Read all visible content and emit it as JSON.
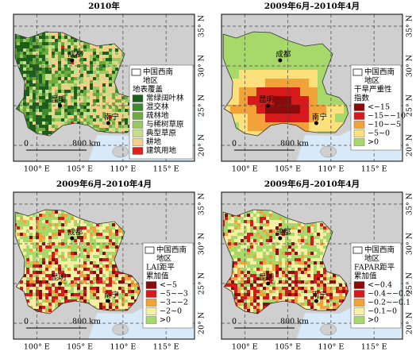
{
  "lat_labels": [
    "35° N",
    "30° N",
    "25° N",
    "20° N"
  ],
  "lon_labels": [
    "100° E",
    "105° E",
    "110° E",
    "115° E"
  ],
  "cities": [
    "成都",
    "昆明",
    "南宁"
  ],
  "region_label": [
    "中国西南",
    "地区"
  ],
  "scale": {
    "start": "0",
    "end": "800 km"
  },
  "panels": [
    {
      "title": "2010年",
      "legend_title": [
        "地表覆盖"
      ],
      "legend": [
        {
          "label": "常绿阔叶林",
          "color": "#1d5e1d"
        },
        {
          "label": "混交林",
          "color": "#3f8a2c"
        },
        {
          "label": "疏林地",
          "color": "#6faa3a"
        },
        {
          "label": "与稀树草原",
          "color": "#98c860"
        },
        {
          "label": "典型草原",
          "color": "#c4df8c"
        },
        {
          "label": "耕地",
          "color": "#f3cf8a"
        },
        {
          "label": "建筑用地",
          "color": "#e0201c"
        }
      ]
    },
    {
      "title": "2009年6月–2010年4月",
      "legend_title": [
        "干旱严重性",
        "指数"
      ],
      "legend": [
        {
          "label": "<−15",
          "color": "#8b0a0a"
        },
        {
          "label": "−15∼−10",
          "color": "#d7191c"
        },
        {
          "label": "−10∼−5",
          "color": "#f3a23a"
        },
        {
          "label": "−5∼0",
          "color": "#fbe07c"
        },
        {
          "label": ">0",
          "color": "#a6d96a"
        }
      ]
    },
    {
      "title": "2009年6月–2010年4月",
      "legend_title": [
        "LAI距平",
        "累加值"
      ],
      "legend": [
        {
          "label": "<−5",
          "color": "#8b0a0a"
        },
        {
          "label": "−5∼−3",
          "color": "#d7191c"
        },
        {
          "label": "−3∼−2",
          "color": "#f3a23a"
        },
        {
          "label": "−2∼0",
          "color": "#f6f0a4"
        },
        {
          "label": ">0",
          "color": "#a6d96a"
        }
      ]
    },
    {
      "title": "2009年6月–2010年4月",
      "legend_title": [
        "FAPAR距平",
        "累加值"
      ],
      "legend": [
        {
          "label": "<−0.4",
          "color": "#8b0a0a"
        },
        {
          "label": "−0.4∼−0.2",
          "color": "#d7191c"
        },
        {
          "label": "−0.2∼−0.1",
          "color": "#f3a23a"
        },
        {
          "label": "−0.1∼0",
          "color": "#f6f0a4"
        },
        {
          "label": ">0",
          "color": "#a6d96a"
        }
      ]
    }
  ]
}
